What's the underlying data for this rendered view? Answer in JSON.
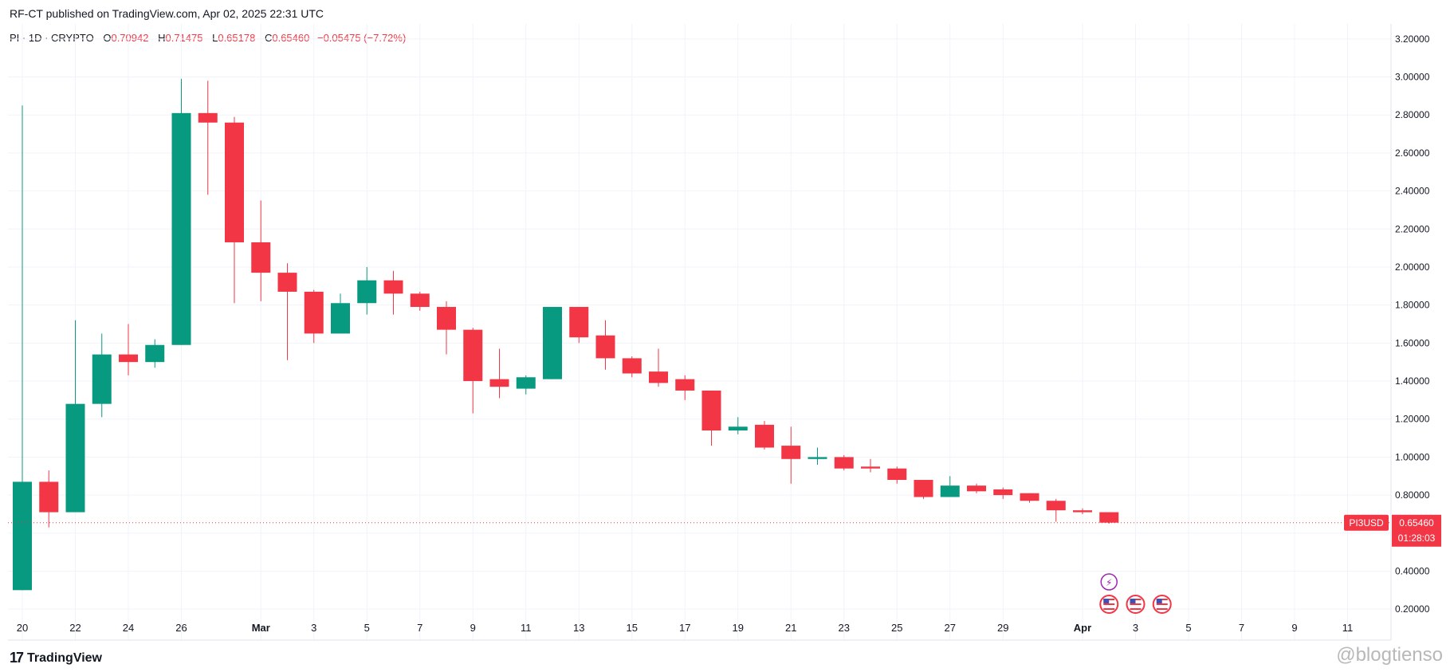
{
  "header": {
    "published": "RF-CT published on TradingView.com, Apr 02, 2025 22:31 UTC"
  },
  "legend": {
    "symbol": "PI · 1D · CRYPTO",
    "open_label": "O",
    "open": "0.70942",
    "high_label": "H",
    "high": "0.71475",
    "low_label": "L",
    "low": "0.65178",
    "close_label": "C",
    "close": "0.65460",
    "change": "−0.05475 (−7.72%)"
  },
  "footer": {
    "brand": "TradingView",
    "logo_mark": "17",
    "watermark": "@blogtienso"
  },
  "colors": {
    "up": "#089981",
    "down": "#f23645",
    "grid": "#f0f3fa",
    "axis_text": "#131722",
    "event_dividend": "#9c27b0",
    "event_flag": "#f23645"
  },
  "chart_data": {
    "type": "candlestick",
    "symbol": "PI3USD",
    "timeframe": "1D",
    "ylim": [
      0.1,
      3.3
    ],
    "y_ticks": [
      "0.20000",
      "0.40000",
      "0.60000",
      "0.80000",
      "1.00000",
      "1.20000",
      "1.40000",
      "1.60000",
      "1.80000",
      "2.00000",
      "2.20000",
      "2.40000",
      "2.60000",
      "2.80000",
      "3.00000",
      "3.20000"
    ],
    "x_ticks": [
      {
        "label": "20",
        "i": 0
      },
      {
        "label": "22",
        "i": 2
      },
      {
        "label": "24",
        "i": 4
      },
      {
        "label": "26",
        "i": 6
      },
      {
        "label": "Mar",
        "i": 9
      },
      {
        "label": "3",
        "i": 11
      },
      {
        "label": "5",
        "i": 13
      },
      {
        "label": "7",
        "i": 15
      },
      {
        "label": "9",
        "i": 17
      },
      {
        "label": "11",
        "i": 19
      },
      {
        "label": "13",
        "i": 21
      },
      {
        "label": "15",
        "i": 23
      },
      {
        "label": "17",
        "i": 25
      },
      {
        "label": "19",
        "i": 27
      },
      {
        "label": "21",
        "i": 29
      },
      {
        "label": "23",
        "i": 31
      },
      {
        "label": "25",
        "i": 33
      },
      {
        "label": "27",
        "i": 35
      },
      {
        "label": "29",
        "i": 37
      },
      {
        "label": "Apr",
        "i": 40
      },
      {
        "label": "3",
        "i": 42
      },
      {
        "label": "5",
        "i": 44
      },
      {
        "label": "7",
        "i": 46
      },
      {
        "label": "9",
        "i": 48
      },
      {
        "label": "11",
        "i": 50
      }
    ],
    "candles": [
      {
        "o": 0.3,
        "h": 2.85,
        "l": 0.3,
        "c": 0.87
      },
      {
        "o": 0.87,
        "h": 0.93,
        "l": 0.63,
        "c": 0.71
      },
      {
        "o": 0.71,
        "h": 1.72,
        "l": 0.71,
        "c": 1.28
      },
      {
        "o": 1.28,
        "h": 1.65,
        "l": 1.21,
        "c": 1.54
      },
      {
        "o": 1.54,
        "h": 1.7,
        "l": 1.43,
        "c": 1.5
      },
      {
        "o": 1.5,
        "h": 1.62,
        "l": 1.47,
        "c": 1.59
      },
      {
        "o": 1.59,
        "h": 2.99,
        "l": 1.59,
        "c": 2.81
      },
      {
        "o": 2.81,
        "h": 2.98,
        "l": 2.38,
        "c": 2.76
      },
      {
        "o": 2.76,
        "h": 2.79,
        "l": 1.81,
        "c": 2.13
      },
      {
        "o": 2.13,
        "h": 2.35,
        "l": 1.82,
        "c": 1.97
      },
      {
        "o": 1.97,
        "h": 2.02,
        "l": 1.51,
        "c": 1.87
      },
      {
        "o": 1.87,
        "h": 1.88,
        "l": 1.6,
        "c": 1.65
      },
      {
        "o": 1.65,
        "h": 1.86,
        "l": 1.65,
        "c": 1.81
      },
      {
        "o": 1.81,
        "h": 2.0,
        "l": 1.75,
        "c": 1.93
      },
      {
        "o": 1.93,
        "h": 1.98,
        "l": 1.75,
        "c": 1.86
      },
      {
        "o": 1.86,
        "h": 1.87,
        "l": 1.77,
        "c": 1.79
      },
      {
        "o": 1.79,
        "h": 1.82,
        "l": 1.54,
        "c": 1.67
      },
      {
        "o": 1.67,
        "h": 1.68,
        "l": 1.23,
        "c": 1.4
      },
      {
        "o": 1.41,
        "h": 1.57,
        "l": 1.31,
        "c": 1.37
      },
      {
        "o": 1.36,
        "h": 1.43,
        "l": 1.33,
        "c": 1.42
      },
      {
        "o": 1.41,
        "h": 1.79,
        "l": 1.41,
        "c": 1.79
      },
      {
        "o": 1.79,
        "h": 1.79,
        "l": 1.6,
        "c": 1.63
      },
      {
        "o": 1.64,
        "h": 1.72,
        "l": 1.46,
        "c": 1.52
      },
      {
        "o": 1.52,
        "h": 1.53,
        "l": 1.42,
        "c": 1.44
      },
      {
        "o": 1.45,
        "h": 1.57,
        "l": 1.37,
        "c": 1.39
      },
      {
        "o": 1.41,
        "h": 1.43,
        "l": 1.3,
        "c": 1.35
      },
      {
        "o": 1.35,
        "h": 1.35,
        "l": 1.06,
        "c": 1.14
      },
      {
        "o": 1.14,
        "h": 1.21,
        "l": 1.12,
        "c": 1.16
      },
      {
        "o": 1.17,
        "h": 1.19,
        "l": 1.04,
        "c": 1.05
      },
      {
        "o": 1.06,
        "h": 1.16,
        "l": 0.86,
        "c": 0.99
      },
      {
        "o": 0.99,
        "h": 1.05,
        "l": 0.96,
        "c": 1.0
      },
      {
        "o": 1.0,
        "h": 1.01,
        "l": 0.93,
        "c": 0.94
      },
      {
        "o": 0.95,
        "h": 0.99,
        "l": 0.92,
        "c": 0.94
      },
      {
        "o": 0.94,
        "h": 0.95,
        "l": 0.86,
        "c": 0.88
      },
      {
        "o": 0.88,
        "h": 0.88,
        "l": 0.78,
        "c": 0.79
      },
      {
        "o": 0.79,
        "h": 0.9,
        "l": 0.79,
        "c": 0.85
      },
      {
        "o": 0.85,
        "h": 0.86,
        "l": 0.81,
        "c": 0.82
      },
      {
        "o": 0.83,
        "h": 0.84,
        "l": 0.78,
        "c": 0.8
      },
      {
        "o": 0.81,
        "h": 0.81,
        "l": 0.76,
        "c": 0.77
      },
      {
        "o": 0.77,
        "h": 0.78,
        "l": 0.66,
        "c": 0.72
      },
      {
        "o": 0.72,
        "h": 0.73,
        "l": 0.7,
        "c": 0.71
      },
      {
        "o": 0.71,
        "h": 0.71,
        "l": 0.65,
        "c": 0.655
      }
    ],
    "last_price": {
      "value": 0.6546,
      "symbol_label": "PI3USD",
      "price_label": "0.65460",
      "countdown": "01:28:03"
    },
    "events": [
      {
        "type": "dividend",
        "i": 41,
        "icon": "lightning-icon",
        "glyph": "⚡"
      },
      {
        "type": "economic",
        "i": 41,
        "icon": "us-flag-icon"
      },
      {
        "type": "economic",
        "i": 42,
        "icon": "us-flag-icon"
      },
      {
        "type": "economic",
        "i": 43,
        "icon": "us-flag-icon"
      }
    ],
    "grid": true
  }
}
